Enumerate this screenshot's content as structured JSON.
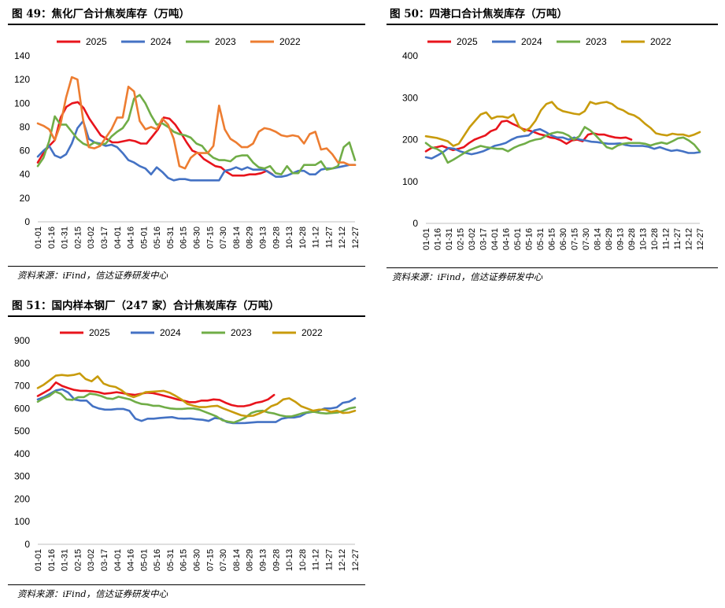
{
  "charts": [
    {
      "title": "图 49：焦化厂合计焦炭库存（万吨）",
      "source": "资料来源：iFind，信达证券研发中心"
    },
    {
      "title": "图 50：四港口合计焦炭库存（万吨）",
      "source": "资料来源：iFind，信达证券研发中心"
    },
    {
      "title": "图 51：国内样本钢厂（247 家）合计焦炭库存（万吨）",
      "source": "资料来源：iFind，信达证券研发中心"
    }
  ],
  "chart_data": [
    {
      "type": "line",
      "title": "图 49：焦化厂合计焦炭库存（万吨）",
      "x_ticks": [
        "01-01",
        "01-16",
        "01-31",
        "02-15",
        "03-02",
        "03-17",
        "04-01",
        "04-16",
        "05-01",
        "05-16",
        "05-31",
        "06-15",
        "06-30",
        "07-15",
        "07-30",
        "08-14",
        "08-29",
        "09-13",
        "09-28",
        "10-13",
        "10-28",
        "11-12",
        "11-27",
        "12-12",
        "12-27"
      ],
      "ylim": [
        0,
        140
      ],
      "yticks": [
        0,
        20,
        40,
        60,
        80,
        100,
        120,
        140
      ],
      "legend_position": "top",
      "series": [
        {
          "name": "2025",
          "color": "#e8141c",
          "values": [
            50,
            58,
            64,
            69,
            88,
            97,
            100,
            101,
            96,
            87,
            80,
            73,
            70,
            67,
            67,
            68,
            69,
            68,
            66,
            66,
            72,
            78,
            88,
            87,
            82,
            75,
            67,
            60,
            58,
            53,
            50,
            47,
            46,
            42,
            39,
            39,
            39,
            40,
            40,
            41,
            43,
            40
          ]
        },
        {
          "name": "2024",
          "color": "#4472c4",
          "values": [
            55,
            60,
            64,
            56,
            54,
            57,
            66,
            79,
            85,
            70,
            67,
            66,
            64,
            65,
            63,
            58,
            52,
            50,
            47,
            45,
            40,
            46,
            42,
            37,
            35,
            36,
            36,
            35,
            35,
            35,
            35,
            35,
            35,
            43,
            44,
            46,
            44,
            46,
            44,
            44,
            44,
            41,
            38,
            38,
            39,
            41,
            43,
            43,
            40,
            40,
            44,
            45,
            45,
            46,
            47,
            48,
            48
          ]
        },
        {
          "name": "2023",
          "color": "#70ad47",
          "values": [
            47,
            54,
            68,
            89,
            82,
            82,
            76,
            70,
            66,
            64,
            67,
            65,
            66,
            72,
            76,
            79,
            86,
            104,
            107,
            100,
            90,
            82,
            83,
            80,
            76,
            74,
            73,
            71,
            66,
            64,
            58,
            54,
            52,
            52,
            51,
            55,
            56,
            56,
            50,
            46,
            45,
            47,
            41,
            40,
            47,
            41,
            41,
            48,
            48,
            48,
            51,
            44,
            45,
            47,
            63,
            67,
            52
          ]
        },
        {
          "name": "2022",
          "color": "#ed7d31",
          "values": [
            83,
            81,
            78,
            69,
            82,
            105,
            122,
            120,
            86,
            63,
            62,
            64,
            71,
            78,
            88,
            88,
            114,
            110,
            85,
            78,
            80,
            78,
            87,
            82,
            70,
            47,
            45,
            54,
            58,
            58,
            58,
            64,
            98,
            78,
            70,
            67,
            63,
            63,
            66,
            76,
            79,
            78,
            76,
            73,
            72,
            73,
            72,
            66,
            74,
            76,
            61,
            62,
            57,
            50,
            50,
            48,
            48
          ]
        }
      ]
    },
    {
      "type": "line",
      "title": "图 50：四港口合计焦炭库存（万吨）",
      "x_ticks": [
        "01-01",
        "01-16",
        "01-31",
        "02-15",
        "03-02",
        "03-17",
        "04-01",
        "04-16",
        "05-01",
        "05-16",
        "05-31",
        "06-15",
        "06-30",
        "07-15",
        "07-30",
        "08-14",
        "08-29",
        "09-13",
        "09-28",
        "10-13",
        "10-28",
        "11-12",
        "11-27",
        "12-12",
        "12-27"
      ],
      "ylim": [
        0,
        400
      ],
      "yticks": [
        0,
        100,
        200,
        300,
        400
      ],
      "legend_position": "top",
      "series": [
        {
          "name": "2025",
          "color": "#e8141c",
          "values": [
            172,
            180,
            182,
            185,
            180,
            175,
            178,
            182,
            192,
            200,
            205,
            210,
            220,
            225,
            243,
            245,
            238,
            232,
            225,
            222,
            218,
            213,
            210,
            205,
            203,
            198,
            190,
            198,
            200,
            196,
            212,
            215,
            212,
            212,
            208,
            205,
            204,
            205,
            200
          ]
        },
        {
          "name": "2024",
          "color": "#4472c4",
          "values": [
            158,
            155,
            162,
            170,
            180,
            178,
            172,
            168,
            165,
            168,
            172,
            178,
            185,
            188,
            192,
            200,
            206,
            208,
            210,
            222,
            225,
            218,
            210,
            205,
            205,
            200,
            205,
            200,
            198,
            195,
            194,
            192,
            190,
            190,
            191,
            187,
            185,
            185,
            185,
            183,
            178,
            182,
            177,
            173,
            175,
            172,
            168,
            168,
            170
          ]
        },
        {
          "name": "2023",
          "color": "#70ad47",
          "values": [
            192,
            182,
            178,
            170,
            145,
            152,
            160,
            168,
            175,
            180,
            185,
            182,
            180,
            178,
            178,
            172,
            180,
            186,
            190,
            196,
            200,
            202,
            210,
            215,
            218,
            216,
            210,
            200,
            208,
            230,
            222,
            210,
            196,
            182,
            178,
            186,
            190,
            192,
            192,
            192,
            190,
            186,
            190,
            193,
            190,
            196,
            203,
            205,
            198,
            188,
            172
          ]
        },
        {
          "name": "2022",
          "color": "#c89b0c",
          "values": [
            208,
            206,
            204,
            200,
            196,
            185,
            190,
            210,
            230,
            245,
            260,
            265,
            250,
            255,
            255,
            252,
            260,
            232,
            220,
            228,
            245,
            270,
            285,
            290,
            275,
            268,
            265,
            262,
            260,
            268,
            290,
            285,
            288,
            290,
            285,
            275,
            270,
            262,
            258,
            250,
            238,
            228,
            215,
            212,
            210,
            214,
            212,
            212,
            208,
            212,
            218
          ]
        }
      ]
    },
    {
      "type": "line",
      "title": "图 51：国内样本钢厂（247 家）合计焦炭库存（万吨）",
      "x_ticks": [
        "01-01",
        "01-16",
        "01-31",
        "02-15",
        "03-02",
        "03-17",
        "04-01",
        "04-16",
        "05-01",
        "05-16",
        "05-31",
        "06-15",
        "06-30",
        "07-15",
        "07-30",
        "08-14",
        "08-29",
        "09-13",
        "09-28",
        "10-13",
        "10-28",
        "11-12",
        "11-27",
        "12-12",
        "12-27"
      ],
      "ylim": [
        0,
        900
      ],
      "yticks": [
        0,
        100,
        200,
        300,
        400,
        500,
        600,
        700,
        800,
        900
      ],
      "legend_position": "top",
      "series": [
        {
          "name": "2025",
          "color": "#e8141c",
          "values": [
            655,
            670,
            685,
            715,
            700,
            690,
            682,
            678,
            678,
            676,
            672,
            665,
            668,
            672,
            668,
            663,
            660,
            665,
            670,
            668,
            662,
            655,
            648,
            640,
            635,
            628,
            628,
            635,
            635,
            640,
            638,
            625,
            615,
            610,
            610,
            615,
            625,
            630,
            640,
            660
          ]
        },
        {
          "name": "2024",
          "color": "#4472c4",
          "values": [
            640,
            650,
            665,
            680,
            685,
            670,
            640,
            635,
            635,
            610,
            600,
            595,
            595,
            598,
            598,
            590,
            555,
            545,
            555,
            555,
            558,
            560,
            562,
            556,
            555,
            556,
            552,
            550,
            545,
            558,
            555,
            540,
            535,
            535,
            536,
            538,
            540,
            540,
            540,
            540,
            555,
            560,
            560,
            565,
            580,
            585,
            590,
            600,
            600,
            605,
            625,
            630,
            645
          ]
        },
        {
          "name": "2023",
          "color": "#70ad47",
          "values": [
            630,
            645,
            655,
            675,
            665,
            640,
            638,
            650,
            650,
            665,
            662,
            655,
            645,
            642,
            652,
            646,
            640,
            628,
            620,
            618,
            612,
            612,
            605,
            600,
            598,
            598,
            600,
            600,
            595,
            585,
            575,
            565,
            548,
            542,
            538,
            548,
            560,
            580,
            588,
            590,
            582,
            578,
            570,
            565,
            565,
            572,
            580,
            585,
            585,
            580,
            578,
            580,
            582,
            590,
            600,
            605
          ]
        },
        {
          "name": "2022",
          "color": "#c89b0c",
          "values": [
            690,
            705,
            725,
            745,
            748,
            745,
            748,
            755,
            730,
            720,
            742,
            710,
            700,
            695,
            680,
            660,
            650,
            660,
            672,
            674,
            676,
            678,
            670,
            656,
            640,
            620,
            612,
            606,
            606,
            610,
            612,
            600,
            590,
            580,
            570,
            566,
            568,
            578,
            590,
            610,
            620,
            640,
            645,
            630,
            610,
            600,
            590,
            595,
            595,
            585,
            590,
            580,
            582,
            590
          ]
        }
      ]
    }
  ]
}
